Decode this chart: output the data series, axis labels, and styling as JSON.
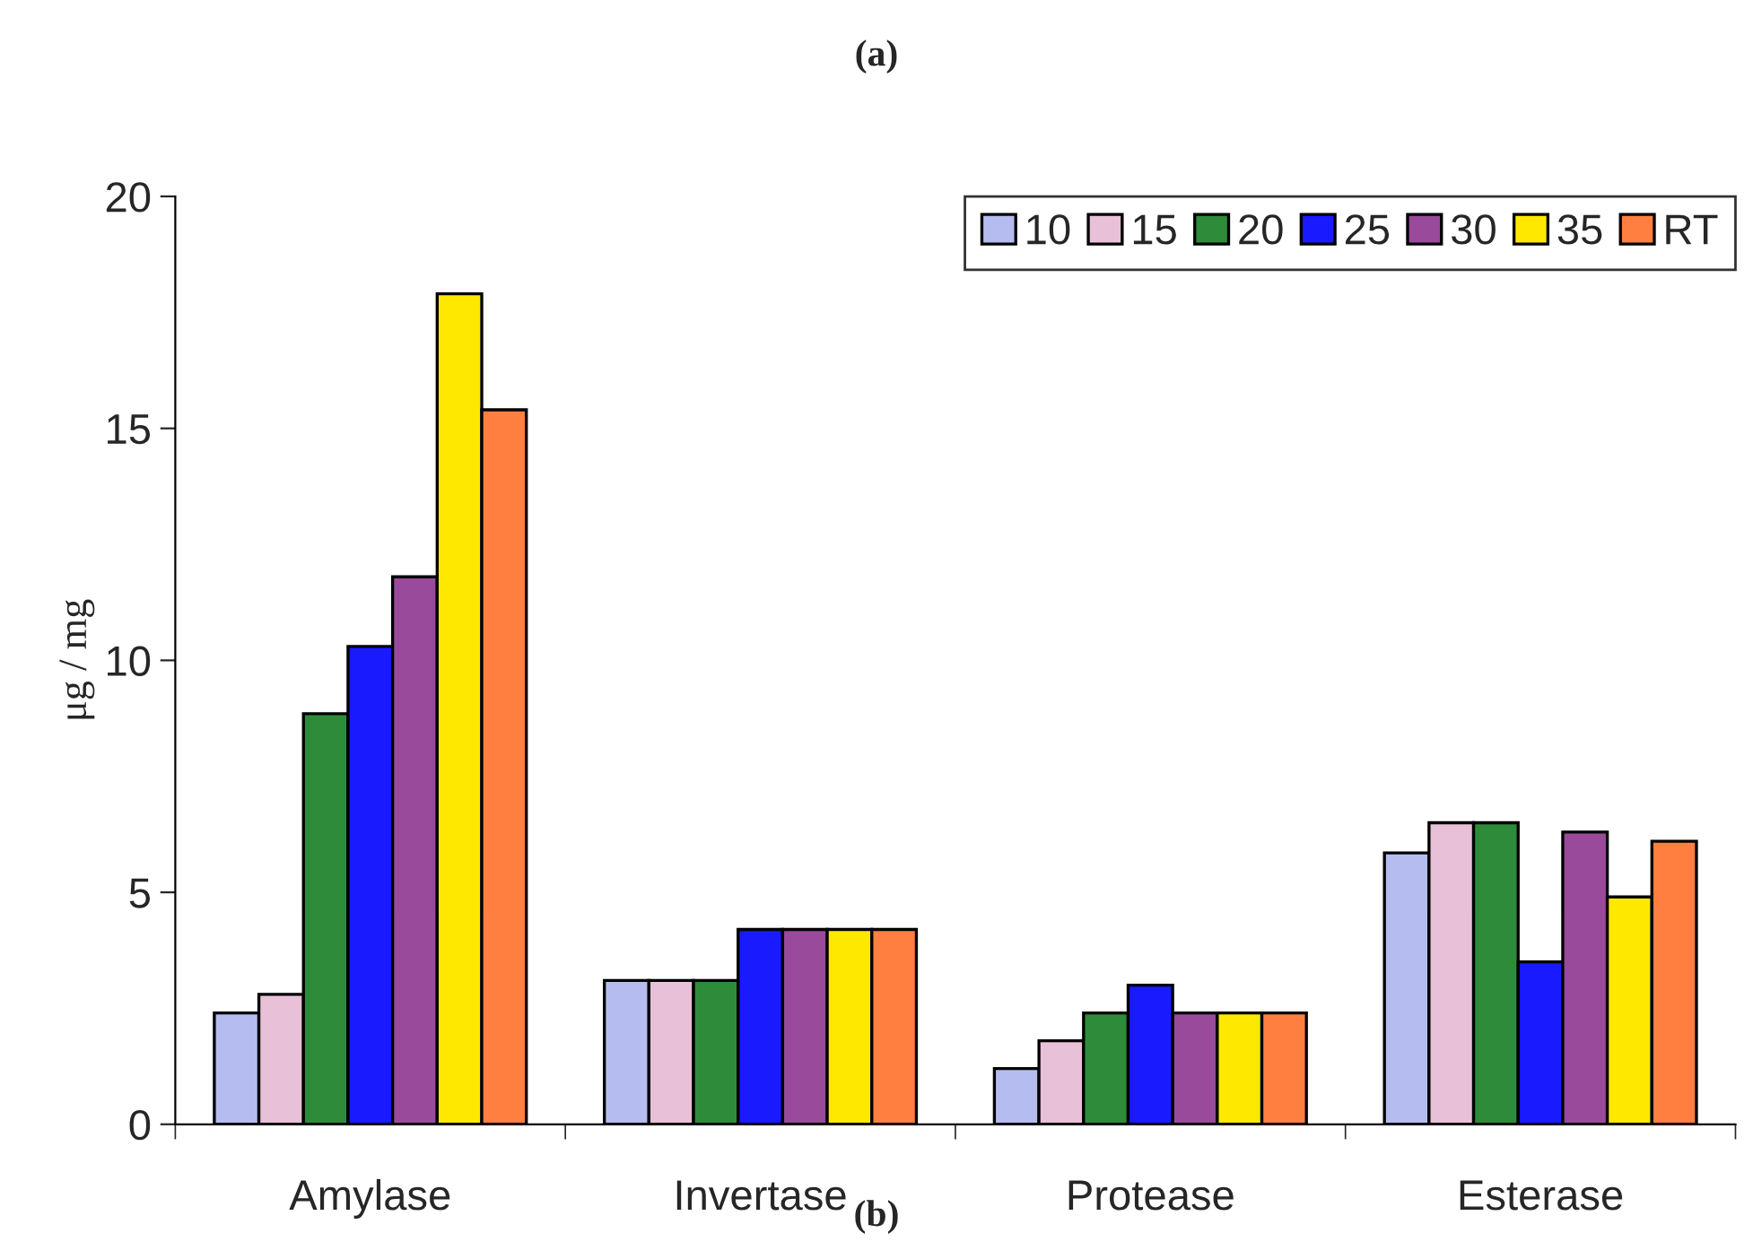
{
  "chart_data": {
    "type": "bar",
    "title": "(a)",
    "ylabel": "μg / mg",
    "categories": [
      "Amylase",
      "Invertase",
      "Protease",
      "Esterase"
    ],
    "series": [
      {
        "name": "10",
        "color": "#b4bcf0",
        "values": [
          2.4,
          3.1,
          1.2,
          5.85
        ]
      },
      {
        "name": "15",
        "color": "#e8c0d8",
        "values": [
          2.8,
          3.1,
          1.8,
          6.5
        ]
      },
      {
        "name": "20",
        "color": "#2e8b3a",
        "values": [
          8.85,
          3.1,
          2.4,
          6.5
        ]
      },
      {
        "name": "25",
        "color": "#1a1aff",
        "values": [
          10.3,
          4.2,
          3.0,
          3.5
        ]
      },
      {
        "name": "30",
        "color": "#9a4a9a",
        "values": [
          11.8,
          4.2,
          2.4,
          6.3
        ]
      },
      {
        "name": "35",
        "color": "#ffe800",
        "values": [
          17.9,
          4.2,
          2.4,
          4.9
        ]
      },
      {
        "name": "RT",
        "color": "#ff7f40",
        "values": [
          15.4,
          4.2,
          2.4,
          6.1
        ]
      }
    ],
    "ylim": [
      0,
      20
    ],
    "yticks": [
      0,
      5,
      10,
      15,
      20
    ],
    "grid": false,
    "legend": "top right",
    "annotations": [
      "(b)"
    ]
  }
}
